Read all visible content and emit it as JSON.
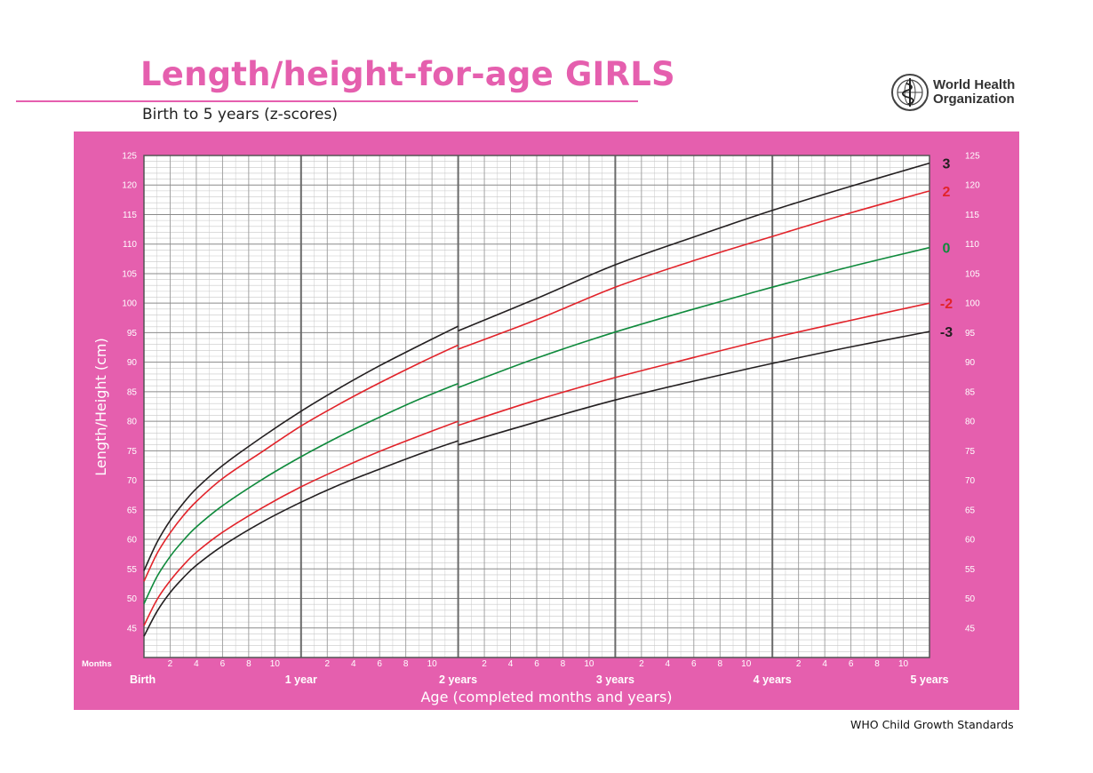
{
  "header": {
    "title": "Length/height-for-age GIRLS",
    "subtitle": "Birth to 5 years (z-scores)",
    "org_name_line1": "World Health",
    "org_name_line2": "Organization",
    "org_logo_icon": "who-emblem-icon"
  },
  "footer": {
    "text": "WHO Child Growth Standards"
  },
  "colors": {
    "frame": "#e55fae",
    "title": "#e55fae",
    "grid_minor": "#c8c8c8",
    "grid_major": "#6a6a6a",
    "z3": "#231f20",
    "z2": "#e2232a",
    "z0": "#0f8a3c"
  },
  "chart_data": {
    "type": "line",
    "title": "Length/height-for-age GIRLS",
    "subtitle": "Birth to 5 years (z-scores)",
    "xlabel": "Age (completed months and years)",
    "ylabel": "Length/Height (cm)",
    "x_unit": "months",
    "xlim": [
      0,
      60
    ],
    "ylim": [
      40,
      125
    ],
    "y_ticks": [
      45,
      50,
      55,
      60,
      65,
      70,
      75,
      80,
      85,
      90,
      95,
      100,
      105,
      110,
      115,
      120,
      125
    ],
    "x_month_ticks": [
      "2",
      "4",
      "6",
      "8",
      "10"
    ],
    "x_months_label": "Months",
    "x_year_labels": [
      "Birth",
      "1 year",
      "2 years",
      "3 years",
      "4 years",
      "5 years"
    ],
    "grid": true,
    "x": [
      0,
      1,
      2,
      3,
      4,
      6,
      9,
      12,
      15,
      18,
      21,
      24,
      30,
      36,
      42,
      48,
      54,
      60
    ],
    "series_break": {
      "at_month": 24,
      "note": "length to 24 months, height after"
    },
    "series": [
      {
        "name": "3",
        "color": "#231f20",
        "values": [
          54.7,
          59.5,
          63.2,
          66.1,
          68.6,
          72.5,
          77.3,
          81.7,
          85.7,
          89.4,
          92.8,
          96.1,
          100.8,
          106.5,
          111.2,
          115.7,
          119.8,
          123.7
        ],
        "values_height_at_24": 95.3
      },
      {
        "name": "2",
        "color": "#e2232a",
        "values": [
          52.9,
          57.6,
          61.1,
          64.0,
          66.4,
          70.3,
          74.8,
          79.2,
          83.0,
          86.5,
          89.8,
          92.9,
          97.2,
          102.7,
          107.2,
          111.3,
          115.3,
          119.0
        ],
        "values_height_at_24": 92.2
      },
      {
        "name": "0",
        "color": "#0f8a3c",
        "values": [
          49.1,
          53.7,
          57.1,
          59.8,
          62.1,
          65.7,
          70.1,
          74.0,
          77.5,
          80.7,
          83.7,
          86.4,
          90.7,
          95.1,
          99.0,
          102.7,
          106.2,
          109.4
        ],
        "values_height_at_24": 85.7
      },
      {
        "name": "-2",
        "color": "#e2232a",
        "values": [
          45.4,
          49.8,
          53.0,
          55.6,
          57.8,
          61.2,
          65.3,
          68.9,
          72.0,
          74.9,
          77.5,
          80.0,
          83.6,
          87.4,
          90.8,
          94.1,
          97.1,
          100.0
        ],
        "values_height_at_24": 79.3
      },
      {
        "name": "-3",
        "color": "#231f20",
        "values": [
          43.6,
          47.8,
          51.0,
          53.5,
          55.6,
          58.9,
          62.9,
          66.3,
          69.3,
          71.9,
          74.4,
          76.7,
          79.9,
          83.6,
          86.8,
          89.8,
          92.6,
          95.2
        ],
        "values_height_at_24": 76.0
      }
    ]
  }
}
